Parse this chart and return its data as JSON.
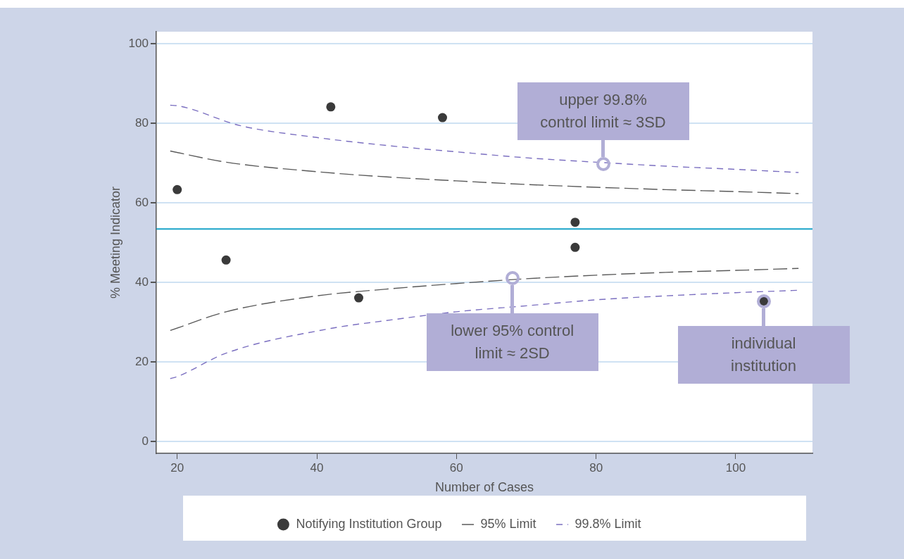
{
  "chart_data": {
    "type": "scatter",
    "xlabel": "Number of Cases",
    "ylabel": "% Meeting Indicator",
    "xlim": [
      17,
      111
    ],
    "xticks": [
      20,
      40,
      60,
      80,
      100
    ],
    "ylim": [
      -3,
      103
    ],
    "yticks": [
      0,
      20,
      40,
      60,
      80,
      100
    ],
    "grid": "y",
    "legend": "bottom",
    "marker": "circle",
    "series": [
      {
        "name": "Notifying Institution Group",
        "color": "#3a3a3a",
        "x": [
          20,
          27,
          42,
          46,
          58,
          77,
          77,
          104
        ],
        "values": [
          63.3,
          45.6,
          84.1,
          36.1,
          81.4,
          55.1,
          48.8,
          35.3
        ]
      },
      {
        "name": "95% Limit",
        "type": "line",
        "marker": "none",
        "line_style": "dashed",
        "color": "#5a5a5a",
        "x": [
          19,
          27,
          40,
          50,
          60,
          70,
          80,
          90,
          100,
          109
        ],
        "values": [
          73.0,
          70.2,
          67.8,
          66.5,
          65.5,
          64.6,
          63.9,
          63.3,
          62.8,
          62.3
        ]
      },
      {
        "type": "line",
        "marker": "none",
        "line_style": "dashed",
        "color": "#5a5a5a",
        "x": [
          19,
          27,
          40,
          50,
          60,
          70,
          80,
          90,
          100,
          109
        ],
        "values": [
          27.9,
          32.6,
          36.6,
          38.3,
          39.7,
          40.9,
          41.8,
          42.5,
          43.0,
          43.5
        ]
      },
      {
        "name": "99.8% Limit",
        "type": "line",
        "marker": "none",
        "line_style": "dotted",
        "color": "#7b6fc0",
        "x": [
          19,
          20,
          29,
          40,
          50,
          60,
          70,
          80,
          90,
          100,
          109
        ],
        "values": [
          84.5,
          84.4,
          79.4,
          76.4,
          74.4,
          72.8,
          71.3,
          70.2,
          69.2,
          68.4,
          67.6
        ]
      },
      {
        "type": "line",
        "marker": "none",
        "line_style": "dotted",
        "color": "#7b6fc0",
        "x": [
          19,
          20,
          27,
          42,
          50,
          60,
          70,
          80,
          90,
          100,
          109
        ],
        "values": [
          15.8,
          16.3,
          22.2,
          28.4,
          30.4,
          32.6,
          34.1,
          35.6,
          36.6,
          37.4,
          38.0
        ]
      }
    ],
    "ref_lines": [
      {
        "axis": "y",
        "value": 53.4,
        "color": "#1aa3c8"
      }
    ],
    "annotations": [
      {
        "text": "upper 99.8%\ncontrol limit ≈ 3SD",
        "x": 81,
        "y": 69.8
      },
      {
        "text": "lower 95% control\nlimit ≈ 2SD",
        "x": 68,
        "y": 41
      },
      {
        "text": "individual\ninstitution",
        "x": 104,
        "y": 35.3
      }
    ]
  }
}
